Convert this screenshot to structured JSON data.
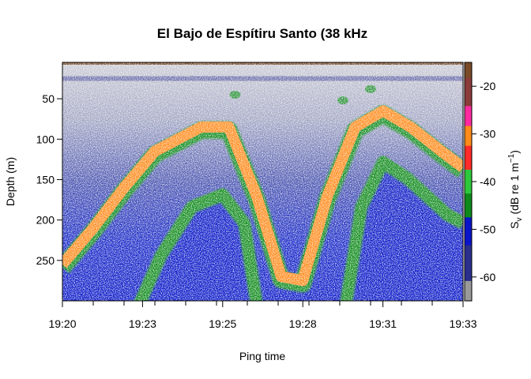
{
  "chart_data": {
    "type": "heatmap",
    "title": "El Bajo de Espítiru Santo (38 kHz",
    "xlabel": "Ping time",
    "ylabel": "Depth (m)",
    "colorbar_label": "Sv (dB re 1 m^-1)",
    "colorbar_label_parts": {
      "symbol": "S",
      "sub": "v",
      "text": "(dB re 1 m",
      "sup": "−1",
      "close": ")"
    },
    "x_ticks": [
      "19:20",
      "19:23",
      "19:25",
      "19:28",
      "19:31",
      "19:33"
    ],
    "x_minor_tick_count": 13,
    "x_range_minutes": [
      0,
      13
    ],
    "y_ticks": [
      50,
      100,
      150,
      200,
      250
    ],
    "y_range": [
      300,
      5
    ],
    "y_reversed": true,
    "colorbar_ticks": [
      -20,
      -30,
      -40,
      -50,
      -60
    ],
    "colorbar_range": [
      -65,
      -15
    ],
    "colorbar_colors": [
      {
        "db": -65,
        "color": "#9a9a9a"
      },
      {
        "db": -57,
        "color": "#2a2f8c"
      },
      {
        "db": -50,
        "color": "#0a14c8"
      },
      {
        "db": -45,
        "color": "#0f8a1a"
      },
      {
        "db": -40,
        "color": "#2dc83c"
      },
      {
        "db": -35,
        "color": "#ff2a2a"
      },
      {
        "db": -30,
        "color": "#ff8a1a"
      },
      {
        "db": -26,
        "color": "#ff2aa0"
      },
      {
        "db": -22,
        "color": "#8c3a3a"
      },
      {
        "db": -15,
        "color": "#7a4a28"
      }
    ],
    "features": [
      {
        "name": "surface-noise-band",
        "depth": 25,
        "sv": -55
      },
      {
        "name": "seafloor-echo-primary",
        "sv": -30,
        "trace": [
          [
            0,
            255
          ],
          [
            1,
            210
          ],
          [
            2,
            160
          ],
          [
            3,
            115
          ],
          [
            4.5,
            85
          ],
          [
            5.4,
            85
          ],
          [
            6.3,
            170
          ],
          [
            7.1,
            270
          ],
          [
            7.8,
            275
          ],
          [
            8.6,
            170
          ],
          [
            9.5,
            85
          ],
          [
            10.4,
            65
          ],
          [
            11.3,
            85
          ],
          [
            12.3,
            115
          ],
          [
            13,
            135
          ]
        ]
      },
      {
        "name": "seafloor-echo-secondary",
        "sv": -45,
        "trace": [
          [
            2.5,
            300
          ],
          [
            3.2,
            240
          ],
          [
            4.2,
            180
          ],
          [
            5.2,
            165
          ],
          [
            5.9,
            200
          ],
          [
            6.3,
            300
          ]
        ]
      },
      {
        "name": "seafloor-echo-secondary-2",
        "sv": -45,
        "trace": [
          [
            9.2,
            300
          ],
          [
            9.7,
            180
          ],
          [
            10.4,
            125
          ],
          [
            11.2,
            145
          ],
          [
            12.5,
            190
          ],
          [
            13,
            200
          ]
        ]
      },
      {
        "name": "fish-school-1",
        "minute": 5.6,
        "depth": 45,
        "sv": -45
      },
      {
        "name": "fish-school-2",
        "minute": 9.1,
        "depth": 52,
        "sv": -45
      },
      {
        "name": "fish-school-3",
        "minute": 10.0,
        "depth": 38,
        "sv": -45
      }
    ]
  }
}
